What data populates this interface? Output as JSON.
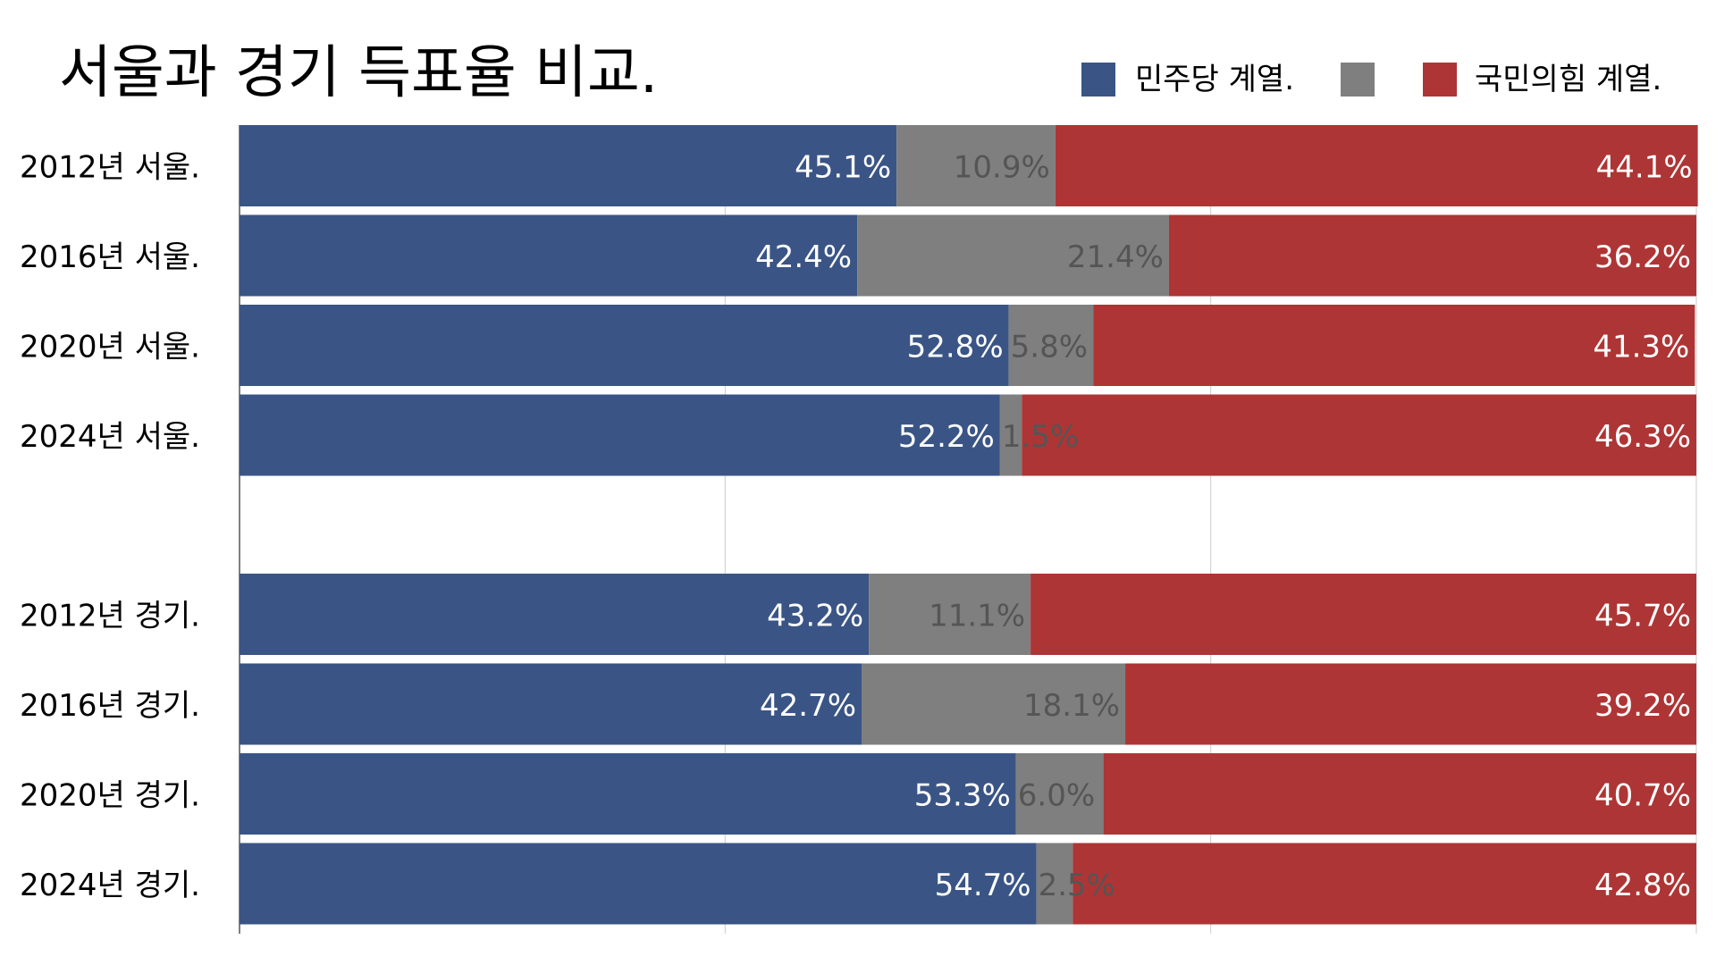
{
  "title": "서울과 경기 득표율 비교.",
  "legend": {
    "dem_label": "민주당 계열.",
    "other_label": "",
    "ppp_label": "국민의힘 계열."
  },
  "colors": {
    "dem": "#3a5585",
    "other": "#7f7f7f",
    "ppp": "#ae3535",
    "label_light": "#ffffff",
    "label_other": "#555555",
    "grid": "#cccccc",
    "axis": "#555555"
  },
  "chart_data": {
    "type": "bar",
    "orientation": "horizontal",
    "stacked": true,
    "title": "서울과 경기 득표율 비교.",
    "xlabel": "",
    "ylabel": "",
    "xlim": [
      0,
      100
    ],
    "grid": true,
    "legend_position": "top-right",
    "categories": [
      "2012년 서울.",
      "2016년 서울.",
      "2020년 서울.",
      "2024년 서울.",
      "2012년 경기.",
      "2016년 경기.",
      "2020년 경기.",
      "2024년 경기."
    ],
    "series": [
      {
        "name": "민주당 계열.",
        "color": "#3a5585",
        "values": [
          45.1,
          42.4,
          52.8,
          52.2,
          43.2,
          42.7,
          53.3,
          54.7
        ],
        "labels": [
          "45.1%",
          "42.4%",
          "52.8%",
          "52.2%",
          "43.2%",
          "42.7%",
          "53.3%",
          "54.7%"
        ]
      },
      {
        "color": "#7f7f7f",
        "values": [
          10.9,
          21.4,
          5.8,
          1.5,
          11.1,
          18.1,
          6.0,
          2.5
        ],
        "labels": [
          "10.9%",
          "21.4%",
          "5.8%",
          "1.5%",
          "11.1%",
          "18.1%",
          "6.0%",
          "2.5%"
        ]
      },
      {
        "name": "국민의힘 계열.",
        "color": "#ae3535",
        "values": [
          44.1,
          36.2,
          41.3,
          46.3,
          45.7,
          39.2,
          40.7,
          42.8
        ],
        "labels": [
          "44.1%",
          "36.2%",
          "41.3%",
          "46.3%",
          "45.7%",
          "39.2%",
          "40.7%",
          "42.8%"
        ]
      }
    ]
  }
}
